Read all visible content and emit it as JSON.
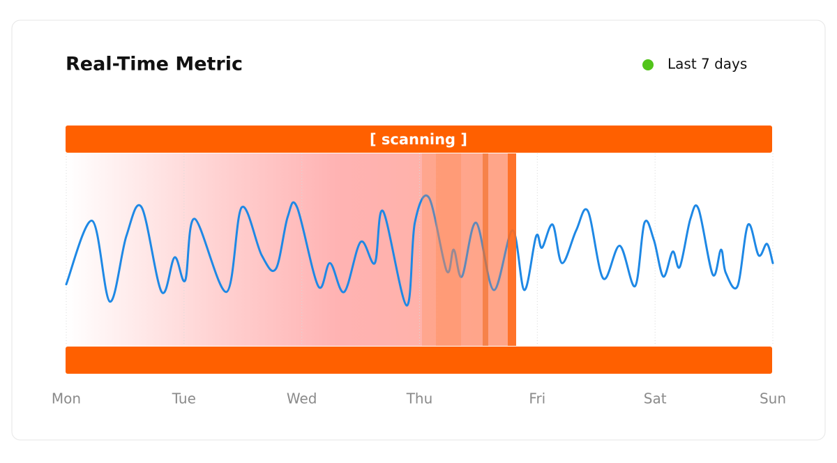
{
  "chart_data": {
    "type": "line",
    "title": "Real-Time Metric",
    "legend": {
      "label": "Last 7 days",
      "color": "#52c41a"
    },
    "annotation": "[ scanning ]",
    "xlim": [
      0,
      6
    ],
    "ylim": [
      0,
      100
    ],
    "xticks": [
      {
        "value": 0,
        "label": "Mon"
      },
      {
        "value": 1,
        "label": "Tue"
      },
      {
        "value": 2,
        "label": "Wed"
      },
      {
        "value": 3,
        "label": "Thu"
      },
      {
        "value": 4,
        "label": "Fri"
      },
      {
        "value": 5,
        "label": "Sat"
      },
      {
        "value": 6,
        "label": "Sun"
      }
    ],
    "grid": true,
    "series": [
      {
        "color": "#1e88e5",
        "x": [
          0,
          0.22,
          0.37,
          0.51,
          0.64,
          0.81,
          0.92,
          1.01,
          1.09,
          1.36,
          1.49,
          1.66,
          1.78,
          1.88,
          1.96,
          2.14,
          2.24,
          2.36,
          2.5,
          2.62,
          2.69,
          2.89,
          2.96,
          3.08,
          3.23,
          3.29,
          3.36,
          3.48,
          3.63,
          3.79,
          3.89,
          3.99,
          4.04,
          4.13,
          4.21,
          4.33,
          4.43,
          4.56,
          4.7,
          4.83,
          4.91,
          4.99,
          5.07,
          5.15,
          5.21,
          5.3,
          5.37,
          5.49,
          5.56,
          5.6,
          5.7,
          5.79,
          5.88,
          5.95,
          6
        ],
        "values": [
          32,
          65,
          23,
          57,
          72,
          28,
          46,
          34,
          66,
          28,
          72,
          47,
          40,
          67,
          72,
          31,
          43,
          28,
          54,
          43,
          70,
          21,
          64,
          77,
          39,
          50,
          36,
          64,
          29,
          60,
          29,
          57,
          51,
          63,
          43,
          60,
          70,
          35,
          52,
          31,
          64,
          55,
          36,
          49,
          41,
          66,
          71,
          37,
          50,
          38,
          31,
          63,
          47,
          53,
          43
        ]
      }
    ]
  }
}
